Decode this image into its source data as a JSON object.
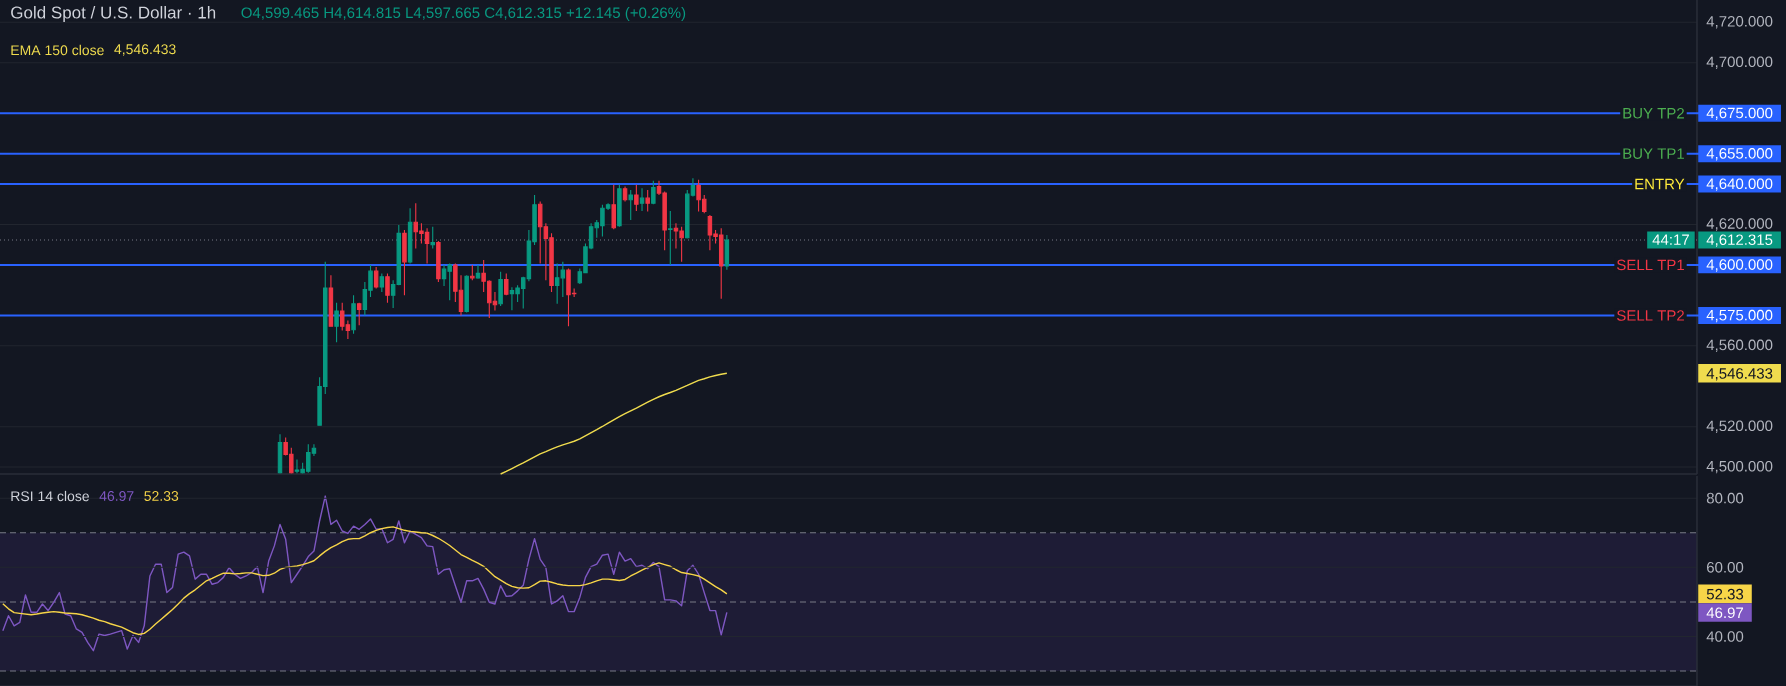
{
  "chart_data": [
    {
      "type": "candlestick",
      "title": "Gold Spot / U.S. Dollar · 1h",
      "subtitle": "O4,599.465 H4,614.815 L4,597.665 C4,612.315 +12.145 (+0.26%)",
      "categories": [
        null,
        null,
        null,
        null,
        null,
        null,
        null,
        null,
        null,
        null,
        null,
        null,
        null,
        null,
        null,
        null,
        null,
        null,
        null,
        null,
        null,
        null,
        null,
        null,
        null,
        null,
        null,
        null,
        null,
        null,
        null,
        null,
        null,
        null,
        null,
        null,
        null,
        null,
        null,
        null,
        null,
        null,
        null,
        null,
        null,
        null,
        null,
        null,
        null,
        null,
        null,
        null,
        null,
        null,
        null,
        null,
        null,
        null,
        null,
        null,
        null,
        null,
        null,
        null,
        null,
        null,
        null,
        null,
        null,
        null,
        null,
        null,
        null,
        null,
        null,
        null,
        null,
        null,
        null,
        null,
        null,
        null,
        null,
        null,
        null,
        null,
        null,
        null,
        null,
        null,
        null,
        null,
        null,
        null,
        null,
        null,
        null,
        null,
        null,
        null,
        null,
        null,
        null,
        null,
        null,
        null,
        null,
        null,
        null,
        null,
        null,
        null,
        null,
        null,
        null,
        null,
        null,
        null,
        null,
        null,
        null,
        null,
        null,
        null,
        null,
        null,
        null,
        null,
        null,
        null,
        null,
        null,
        null,
        null,
        null,
        null,
        null,
        null,
        null,
        null,
        null,
        null,
        null,
        null,
        null,
        null,
        null,
        null,
        null,
        null,
        null,
        null,
        null,
        null,
        null,
        null,
        null,
        null,
        null,
        null,
        null,
        null,
        null,
        null,
        null,
        null,
        null,
        null,
        null,
        null,
        null,
        null,
        null,
        null,
        null,
        null,
        null,
        null,
        null,
        null,
        null,
        null,
        null,
        null,
        null,
        null,
        null,
        null,
        null,
        null,
        null,
        null,
        null,
        null,
        null,
        null,
        null,
        null,
        null,
        null,
        null,
        null,
        null,
        null,
        null,
        null,
        null,
        null,
        null,
        null,
        null,
        null,
        null,
        null,
        null,
        null,
        null,
        null,
        null,
        null,
        null,
        null,
        null,
        null,
        null,
        null,
        null,
        null,
        null,
        null,
        null,
        null,
        null,
        null,
        null,
        null,
        null,
        null,
        null,
        null,
        null,
        null,
        null,
        null,
        null,
        null,
        null,
        null,
        null,
        null,
        null,
        null,
        null,
        null,
        null,
        null,
        null,
        null,
        null,
        null,
        null,
        null,
        null,
        null,
        null,
        null,
        null,
        null,
        null,
        null,
        null,
        null,
        null,
        null,
        null,
        null,
        null,
        null,
        null,
        null,
        null,
        null,
        null,
        null,
        null,
        null,
        null,
        null,
        null,
        null,
        null,
        null,
        null,
        null,
        null,
        null,
        null,
        null,
        null,
        null
      ],
      "ohlc": [
        null,
        null,
        null,
        null,
        null,
        null,
        null,
        null,
        null,
        null,
        null,
        null,
        null,
        null,
        null,
        null,
        null,
        null,
        null,
        null,
        null,
        null,
        null,
        null,
        null,
        null,
        null,
        null,
        null,
        null,
        null,
        null,
        null,
        null,
        null,
        null,
        null,
        null,
        null,
        null,
        null,
        null,
        null,
        null,
        null,
        null,
        null,
        null,
        null,
        [
          4497.2,
          4516.3,
          4496.9,
          4512.1
        ],
        [
          4512.1,
          4514.6,
          4505.8,
          4506.3
        ],
        [
          4506.3,
          4509.6,
          4496.9,
          4497.2
        ],
        [
          4498.0,
          4503.8,
          4497.0,
          4498.5
        ],
        [
          4497.2,
          4502.2,
          4496.9,
          4498.9
        ],
        [
          4498.0,
          4511.3,
          4497.2,
          4507.2
        ],
        [
          4506.9,
          4511.3,
          4505.5,
          4509.3
        ],
        [
          4520.7,
          4544.4,
          4520.4,
          4539.9
        ],
        [
          4539.9,
          4601.5,
          4536.1,
          4588.6
        ],
        [
          4588.6,
          4594.9,
          4569.4,
          4569.7
        ],
        [
          4569.7,
          4581.3,
          4561.8,
          4577.2
        ],
        [
          4577.2,
          4581.3,
          4567.6,
          4569.7
        ],
        [
          4570.4,
          4572.5,
          4563.4,
          4567.6
        ],
        [
          4567.9,
          4585.0,
          4565.9,
          4580.8
        ],
        [
          4580.8,
          4581.3,
          4570.1,
          4578.0
        ],
        [
          4578.0,
          4591.6,
          4575.0,
          4587.8
        ],
        [
          4587.5,
          4600.0,
          4584.1,
          4596.9
        ],
        [
          4596.9,
          4599.0,
          4588.3,
          4589.1
        ],
        [
          4589.1,
          4595.7,
          4586.6,
          4594.1
        ],
        [
          4594.1,
          4595.7,
          4581.3,
          4585.0
        ],
        [
          4585.0,
          4592.4,
          4578.7,
          4590.3
        ],
        [
          4590.3,
          4619.7,
          4589.9,
          4615.6
        ],
        [
          4615.6,
          4617.3,
          4585.0,
          4601.5
        ],
        [
          4601.5,
          4628.0,
          4600.7,
          4621.1
        ],
        [
          4621.1,
          4630.5,
          4608.1,
          4616.4
        ],
        [
          4616.8,
          4620.6,
          4610.6,
          4615.6
        ],
        [
          4616.1,
          4618.1,
          4600.7,
          4610.6
        ],
        [
          4610.0,
          4618.9,
          4608.1,
          4611.0
        ],
        [
          4611.1,
          4611.8,
          4591.6,
          4593.2
        ],
        [
          4593.2,
          4599.9,
          4589.6,
          4597.9
        ],
        [
          4596.9,
          4600.7,
          4582.5,
          4599.9
        ],
        [
          4599.9,
          4600.7,
          4581.7,
          4587.0
        ],
        [
          4587.5,
          4594.9,
          4575.0,
          4577.0
        ],
        [
          4577.0,
          4594.9,
          4576.4,
          4594.4
        ],
        [
          4594.4,
          4599.9,
          4592.4,
          4593.6
        ],
        [
          4593.6,
          4599.9,
          4593.2,
          4595.8
        ],
        [
          4595.8,
          4602.4,
          4586.6,
          4591.9
        ],
        [
          4591.9,
          4592.4,
          4573.7,
          4581.3
        ],
        [
          4582.0,
          4586.6,
          4577.5,
          4580.3
        ],
        [
          4580.8,
          4596.6,
          4579.7,
          4592.7
        ],
        [
          4592.7,
          4595.7,
          4585.0,
          4585.5
        ],
        [
          4585.8,
          4588.9,
          4577.6,
          4587.3
        ],
        [
          4585.8,
          4589.9,
          4581.7,
          4588.6
        ],
        [
          4588.3,
          4594.1,
          4578.4,
          4593.6
        ],
        [
          4593.2,
          4617.3,
          4591.9,
          4611.8
        ],
        [
          4611.5,
          4634.6,
          4609.8,
          4629.7
        ],
        [
          4630.0,
          4631.3,
          4600.7,
          4618.9
        ],
        [
          4618.9,
          4620.6,
          4592.4,
          4613.1
        ],
        [
          4613.4,
          4615.6,
          4586.6,
          4589.9
        ],
        [
          4589.9,
          4600.7,
          4580.8,
          4593.6
        ],
        [
          4593.6,
          4601.5,
          4584.1,
          4597.4
        ],
        [
          4597.4,
          4598.2,
          4569.7,
          4585.3
        ],
        [
          4586.0,
          4588.3,
          4584.1,
          4585.7
        ],
        [
          4591.2,
          4598.2,
          4590.5,
          4596.6
        ],
        [
          4596.2,
          4610.6,
          4595.9,
          4608.9
        ],
        [
          4608.4,
          4620.6,
          4607.8,
          4618.9
        ],
        [
          4618.4,
          4622.2,
          4613.4,
          4620.8
        ],
        [
          4619.4,
          4629.7,
          4614.0,
          4628.0
        ],
        [
          4628.0,
          4630.5,
          4627.2,
          4629.7
        ],
        [
          4629.7,
          4639.6,
          4617.6,
          4618.4
        ],
        [
          4619.4,
          4639.6,
          4618.9,
          4637.6
        ],
        [
          4637.6,
          4638.8,
          4631.3,
          4632.2
        ],
        [
          4632.2,
          4637.1,
          4622.2,
          4634.6
        ],
        [
          4634.6,
          4639.6,
          4626.7,
          4630.0
        ],
        [
          4630.5,
          4637.9,
          4626.7,
          4633.0
        ],
        [
          4633.0,
          4637.1,
          4626.4,
          4630.5
        ],
        [
          4630.5,
          4641.6,
          4630.0,
          4638.3
        ],
        [
          4638.8,
          4641.6,
          4634.6,
          4635.5
        ],
        [
          4635.5,
          4636.3,
          4607.3,
          4617.3
        ],
        [
          4617.5,
          4626.7,
          4599.9,
          4617.8
        ],
        [
          4618.1,
          4620.6,
          4608.1,
          4616.8
        ],
        [
          4616.8,
          4618.9,
          4601.5,
          4613.4
        ],
        [
          4613.4,
          4637.1,
          4613.1,
          4635.0
        ],
        [
          4634.5,
          4642.9,
          4633.8,
          4639.3
        ],
        [
          4639.3,
          4642.1,
          4626.4,
          4632.2
        ],
        [
          4632.5,
          4634.6,
          4625.5,
          4626.4
        ],
        [
          4623.9,
          4624.7,
          4607.3,
          4614.8
        ],
        [
          4615.3,
          4617.3,
          4610.6,
          4614.1
        ],
        [
          4614.8,
          4618.1,
          4583.3,
          4599.5
        ],
        [
          4599.465,
          4614.815,
          4597.665,
          4612.315
        ],
        null,
        null,
        null,
        null,
        null,
        null,
        null,
        null,
        null,
        null,
        null,
        null,
        null,
        null,
        null,
        null,
        null,
        null,
        null,
        null,
        null,
        null,
        null,
        null,
        null,
        null,
        null,
        null,
        null,
        null,
        null,
        null,
        null,
        null,
        null,
        null,
        null,
        null,
        null,
        null,
        null,
        null,
        null,
        null,
        null,
        null,
        null,
        null,
        null,
        null,
        null,
        null,
        null,
        null,
        null,
        null,
        null,
        null,
        null,
        null,
        null,
        null,
        null,
        null,
        null,
        null,
        null,
        null,
        null,
        null,
        null,
        null,
        null,
        null,
        null,
        null,
        null,
        null,
        null,
        null,
        null,
        null,
        null,
        null,
        null,
        null,
        null,
        null,
        null,
        null,
        null,
        null,
        null,
        null,
        null,
        null,
        null,
        null,
        null,
        null,
        null,
        null,
        null,
        null,
        null,
        null,
        null,
        null,
        null,
        null,
        null,
        null,
        null,
        null,
        null,
        null,
        null,
        null,
        null,
        null,
        null,
        null,
        null,
        null,
        null,
        null,
        null,
        null,
        null,
        null,
        null,
        null,
        null,
        null,
        null,
        null,
        null,
        null,
        null,
        null,
        null,
        null,
        null,
        null,
        null,
        null,
        null,
        null,
        null,
        null,
        null,
        null,
        null,
        null,
        null,
        null,
        null,
        null,
        null,
        null,
        null,
        null,
        null,
        null,
        null,
        null,
        null,
        null,
        null,
        null,
        null
      ],
      "series": [
        {
          "type": "line",
          "name": "EMA 150 close",
          "color": "#f0dc4e",
          "values": [
            null,
            null,
            null,
            null,
            null,
            null,
            null,
            null,
            null,
            null,
            null,
            null,
            null,
            null,
            null,
            null,
            null,
            null,
            null,
            null,
            null,
            null,
            null,
            null,
            null,
            null,
            null,
            null,
            null,
            null,
            null,
            null,
            null,
            null,
            null,
            null,
            null,
            null,
            null,
            null,
            null,
            null,
            null,
            null,
            null,
            null,
            null,
            null,
            null,
            null,
            null,
            null,
            null,
            null,
            null,
            null,
            null,
            null,
            null,
            null,
            null,
            null,
            null,
            null,
            null,
            null,
            null,
            null,
            null,
            null,
            null,
            null,
            null,
            null,
            null,
            null,
            null,
            null,
            null,
            null,
            null,
            null,
            null,
            null,
            null,
            null,
            null,
            null,
            4496.6,
            4497.9,
            4499.3,
            4500.7,
            4502.1,
            4503.6,
            4505.1,
            4506.6,
            4507.7,
            4508.9,
            4510.0,
            4511.0,
            4511.9,
            4512.8,
            4514.0,
            4515.5,
            4517.0,
            4518.5,
            4520.1,
            4521.8,
            4523.4,
            4525.0,
            4526.4,
            4527.8,
            4529.2,
            4530.7,
            4532.1,
            4533.5,
            4534.8,
            4535.9,
            4536.9,
            4538.0,
            4539.2,
            4540.4,
            4541.7,
            4542.9,
            4543.7,
            4544.6,
            4545.3,
            4545.9,
            4546.433,
            null,
            null,
            null,
            null,
            null,
            null,
            null,
            null,
            null,
            null,
            null,
            null,
            null,
            null,
            null,
            null,
            null,
            null,
            null,
            null,
            null,
            null,
            null,
            null,
            null,
            null,
            null,
            null,
            null,
            null,
            null,
            null,
            null,
            null,
            null,
            null,
            null,
            null,
            null,
            null,
            null,
            null,
            null,
            null,
            null,
            null,
            null,
            null,
            null,
            null,
            null,
            null,
            null,
            null,
            null,
            null,
            null,
            null,
            null,
            null,
            null,
            null,
            null,
            null,
            null,
            null,
            null,
            null,
            null,
            null,
            null,
            null,
            null,
            null,
            null,
            null,
            null,
            null,
            null,
            null,
            null,
            null,
            null,
            null,
            null,
            null,
            null,
            null,
            null,
            null,
            null,
            null,
            null,
            null,
            null,
            null,
            null,
            null,
            null,
            null,
            null,
            null,
            null,
            null,
            null,
            null,
            null,
            null,
            null,
            null,
            null,
            null,
            null,
            null,
            null,
            null,
            null,
            null,
            null,
            null,
            null,
            null,
            null,
            null,
            null,
            null,
            null,
            null,
            null,
            null,
            null,
            null,
            null,
            null,
            null,
            null,
            null,
            null,
            null,
            null,
            null,
            null,
            null,
            null,
            null,
            null,
            null,
            null,
            null,
            null,
            null,
            null,
            null,
            null,
            null,
            null,
            null,
            null,
            null,
            null,
            null,
            null,
            null,
            null,
            null,
            null,
            null,
            null,
            null,
            null,
            null
          ]
        }
      ],
      "ylim": [
        4496.6,
        4731
      ],
      "yticks": [
        {
          "value": 4720,
          "label": "4,720.000"
        },
        {
          "value": 4700,
          "label": "4,700.000"
        },
        {
          "value": 4620,
          "label": "4,620.000"
        },
        {
          "value": 4560,
          "label": "4,560.000"
        },
        {
          "value": 4546.433,
          "label": "4,546.433"
        },
        {
          "value": 4520,
          "label": "4,520.000"
        },
        {
          "value": 4500,
          "label": "4,500.000"
        }
      ],
      "ref_lines": [
        {
          "axis": "y",
          "value": 4675,
          "label": "BUY TP2",
          "color": "#2962ff"
        },
        {
          "axis": "y",
          "value": 4655,
          "label": "BUY TP1",
          "color": "#2962ff"
        },
        {
          "axis": "y",
          "value": 4640,
          "label": "ENTRY",
          "color": "#2962ff"
        },
        {
          "axis": "y",
          "value": 4600,
          "label": "SELL TP1",
          "color": "#2962ff"
        },
        {
          "axis": "y",
          "value": 4575,
          "label": "SELL TP2",
          "color": "#2962ff"
        },
        {
          "axis": "y",
          "value": 4612.315,
          "color": "#787b86",
          "line_style": "dotted"
        }
      ],
      "grid": "y",
      "legend": "top left",
      "tick_labels": "y",
      "annotations": [
        "4,546.433",
        {
          "text": "4,675.000",
          "y": 4675
        },
        {
          "text": "4,655.000",
          "y": 4655
        },
        {
          "text": "4,640.000",
          "y": 4640
        },
        {
          "text": "4,612.315",
          "y": 4612.315
        },
        {
          "text": "44:17",
          "y": 4612.315
        },
        {
          "text": "4,600.000",
          "y": 4600
        },
        {
          "text": "4,575.000",
          "y": 4575
        }
      ]
    },
    {
      "type": "line",
      "title": "RSI 14 close",
      "categories": [
        null,
        null,
        null,
        null,
        null,
        null,
        null,
        null,
        null,
        null,
        null,
        null,
        null,
        null,
        null,
        null,
        null,
        null,
        null,
        null,
        null,
        null,
        null,
        null,
        null,
        null,
        null,
        null,
        null,
        null,
        null,
        null,
        null,
        null,
        null,
        null,
        null,
        null,
        null,
        null,
        null,
        null,
        null,
        null,
        null,
        null,
        null,
        null,
        null,
        null,
        null,
        null,
        null,
        null,
        null,
        null,
        null,
        null,
        null,
        null,
        null,
        null,
        null,
        null,
        null,
        null,
        null,
        null,
        null,
        null,
        null,
        null,
        null,
        null,
        null,
        null,
        null,
        null,
        null,
        null,
        null,
        null,
        null,
        null,
        null,
        null,
        null,
        null,
        null,
        null,
        null,
        null,
        null,
        null,
        null,
        null,
        null,
        null,
        null,
        null,
        null,
        null,
        null,
        null,
        null,
        null,
        null,
        null,
        null,
        null,
        null,
        null,
        null,
        null,
        null,
        null,
        null,
        null,
        null,
        null,
        null,
        null,
        null,
        null,
        null,
        null,
        null,
        null,
        null,
        null,
        null,
        null,
        null,
        null,
        null,
        null,
        null,
        null,
        null,
        null,
        null,
        null,
        null,
        null,
        null,
        null,
        null,
        null,
        null,
        null,
        null,
        null,
        null,
        null,
        null,
        null,
        null,
        null,
        null,
        null,
        null,
        null,
        null,
        null,
        null,
        null,
        null,
        null,
        null,
        null,
        null,
        null,
        null,
        null,
        null,
        null,
        null,
        null,
        null,
        null,
        null,
        null,
        null,
        null,
        null,
        null,
        null,
        null,
        null,
        null,
        null,
        null,
        null,
        null,
        null,
        null,
        null,
        null,
        null,
        null,
        null,
        null,
        null,
        null,
        null,
        null,
        null,
        null,
        null,
        null,
        null,
        null,
        null,
        null,
        null,
        null,
        null,
        null,
        null,
        null,
        null,
        null,
        null,
        null,
        null,
        null,
        null,
        null,
        null,
        null,
        null,
        null,
        null,
        null,
        null,
        null,
        null,
        null,
        null,
        null,
        null,
        null,
        null,
        null,
        null,
        null,
        null,
        null,
        null,
        null,
        null,
        null,
        null,
        null,
        null,
        null,
        null,
        null,
        null,
        null,
        null,
        null,
        null,
        null,
        null,
        null,
        null,
        null,
        null,
        null,
        null,
        null,
        null,
        null,
        null,
        null,
        null,
        null,
        null,
        null,
        null,
        null,
        null,
        null,
        null,
        null,
        null,
        null,
        null,
        null,
        null,
        null,
        null,
        null,
        null,
        null,
        null,
        null,
        null,
        null
      ],
      "series": [
        {
          "color": "#7e57c2",
          "values": [
            41.7,
            46.0,
            43.1,
            44.1,
            52.0,
            47.0,
            47.0,
            49.4,
            47.5,
            49.9,
            52.7,
            46.5,
            46.0,
            42.2,
            41.2,
            38.3,
            35.9,
            40.7,
            40.3,
            40.7,
            41.2,
            41.7,
            36.4,
            40.3,
            38.3,
            43.1,
            57.5,
            60.9,
            60.9,
            52.7,
            54.2,
            63.8,
            64.4,
            63.3,
            56.6,
            58.0,
            58.0,
            55.1,
            55.6,
            57.1,
            59.9,
            58.0,
            56.8,
            57.5,
            58.5,
            60.2,
            52.7,
            61.8,
            66.2,
            72.4,
            68.1,
            55.6,
            58.0,
            60.4,
            63.1,
            64.7,
            73.4,
            80.6,
            72.4,
            73.6,
            70.5,
            69.8,
            71.9,
            71.0,
            72.4,
            74.0,
            71.0,
            71.2,
            67.1,
            68.1,
            73.4,
            67.1,
            70.5,
            69.5,
            68.6,
            66.2,
            66.0,
            58.0,
            59.3,
            59.6,
            54.7,
            49.9,
            56.1,
            56.1,
            56.8,
            53.7,
            49.9,
            49.4,
            54.7,
            51.6,
            51.8,
            53.2,
            54.8,
            62.3,
            68.3,
            62.3,
            59.9,
            49.4,
            50.3,
            51.8,
            47.2,
            47.2,
            51.3,
            57.1,
            60.2,
            60.9,
            63.5,
            63.8,
            58.0,
            64.4,
            61.8,
            62.5,
            60.2,
            60.6,
            59.6,
            61.4,
            60.2,
            50.6,
            50.6,
            50.3,
            48.9,
            59.0,
            60.6,
            58.0,
            52.7,
            47.5,
            47.5,
            40.5,
            46.97,
            null,
            null,
            null,
            null,
            null,
            null,
            null,
            null,
            null,
            null,
            null,
            null,
            null,
            null,
            null,
            null,
            null,
            null,
            null,
            null,
            null,
            null,
            null,
            null,
            null,
            null,
            null,
            null,
            null,
            null,
            null,
            null,
            null,
            null,
            null,
            null,
            null,
            null,
            null,
            null,
            null,
            null,
            null,
            null,
            null,
            null,
            null,
            null,
            null,
            null,
            null,
            null,
            null,
            null,
            null,
            null,
            null,
            null,
            null,
            null,
            null,
            null,
            null,
            null,
            null,
            null,
            null,
            null,
            null,
            null,
            null,
            null,
            null,
            null,
            null,
            null,
            null,
            null,
            null,
            null,
            null,
            null,
            null,
            null,
            null,
            null,
            null,
            null,
            null,
            null,
            null,
            null,
            null,
            null,
            null,
            null,
            null,
            null,
            null,
            null,
            null,
            null,
            null,
            null,
            null,
            null,
            null,
            null,
            null,
            null,
            null,
            null,
            null,
            null,
            null,
            null,
            null,
            null,
            null,
            null,
            null,
            null,
            null,
            null,
            null,
            null,
            null,
            null,
            null,
            null,
            null,
            null,
            null,
            null,
            null,
            null,
            null,
            null,
            null,
            null,
            null,
            null,
            null,
            null,
            null,
            null,
            null,
            null,
            null,
            null,
            null,
            null,
            null,
            null,
            null,
            null,
            null,
            null,
            null,
            null,
            null,
            null,
            null,
            null,
            null,
            null,
            null,
            null,
            null,
            null,
            null
          ]
        },
        {
          "color": "#f7d548",
          "values": [
            49.5,
            48.0,
            46.9,
            46.7,
            46.5,
            46.3,
            46.5,
            46.8,
            47.0,
            47.2,
            47.0,
            46.8,
            46.7,
            46.6,
            46.3,
            45.8,
            45.3,
            44.7,
            44.3,
            43.7,
            43.2,
            42.7,
            41.9,
            41.1,
            40.6,
            40.9,
            42.1,
            43.6,
            45.0,
            46.4,
            47.8,
            49.4,
            51.1,
            52.4,
            53.5,
            54.8,
            56.1,
            56.8,
            57.6,
            58.3,
            58.3,
            58.1,
            58.2,
            58.4,
            58.4,
            58.0,
            57.6,
            57.7,
            58.3,
            59.4,
            60.0,
            60.2,
            60.4,
            60.8,
            61.3,
            61.9,
            63.3,
            64.6,
            65.7,
            66.5,
            67.4,
            68.1,
            68.3,
            68.3,
            69.1,
            70.0,
            70.7,
            71.2,
            71.5,
            71.7,
            71.2,
            70.7,
            70.4,
            70.2,
            70.0,
            69.9,
            69.2,
            68.4,
            67.4,
            66.3,
            65.0,
            63.7,
            62.9,
            62.0,
            61.2,
            60.3,
            58.8,
            57.3,
            56.3,
            55.3,
            54.5,
            54.1,
            54.0,
            54.1,
            55.0,
            56.0,
            56.1,
            55.7,
            55.2,
            54.9,
            54.7,
            54.7,
            54.7,
            55.0,
            55.5,
            56.1,
            56.6,
            56.6,
            56.4,
            56.2,
            56.5,
            57.5,
            58.3,
            59.2,
            60.0,
            60.8,
            61.3,
            60.8,
            60.3,
            59.3,
            58.5,
            58.2,
            57.9,
            57.5,
            56.6,
            55.5,
            54.4,
            53.5,
            52.33,
            null,
            null,
            null,
            null,
            null,
            null,
            null,
            null,
            null,
            null,
            null,
            null,
            null,
            null,
            null,
            null,
            null,
            null,
            null,
            null,
            null,
            null,
            null,
            null,
            null,
            null,
            null,
            null,
            null,
            null,
            null,
            null,
            null,
            null,
            null,
            null,
            null,
            null,
            null,
            null,
            null,
            null,
            null,
            null,
            null,
            null,
            null,
            null,
            null,
            null,
            null,
            null,
            null,
            null,
            null,
            null,
            null,
            null,
            null,
            null,
            null,
            null,
            null,
            null,
            null,
            null,
            null,
            null,
            null,
            null,
            null,
            null,
            null,
            null,
            null,
            null,
            null,
            null,
            null,
            null,
            null,
            null,
            null,
            null,
            null,
            null,
            null,
            null,
            null,
            null,
            null,
            null,
            null,
            null,
            null,
            null,
            null,
            null,
            null,
            null,
            null,
            null,
            null,
            null,
            null,
            null,
            null,
            null,
            null,
            null,
            null,
            null,
            null,
            null,
            null,
            null,
            null,
            null,
            null,
            null,
            null,
            null,
            null,
            null,
            null,
            null,
            null,
            null,
            null,
            null,
            null,
            null,
            null,
            null,
            null,
            null,
            null,
            null,
            null,
            null,
            null,
            null,
            null,
            null,
            null,
            null,
            null,
            null,
            null,
            null,
            null,
            null,
            null,
            null,
            null,
            null,
            null,
            null,
            null,
            null,
            null,
            null,
            null,
            null,
            null,
            null,
            null,
            null,
            null,
            null,
            null
          ]
        }
      ],
      "ylim": [
        25.7,
        86.4
      ],
      "yticks": [
        {
          "value": 80,
          "label": "80.00"
        },
        {
          "value": 60,
          "label": "60.00"
        },
        {
          "value": 52.33,
          "label": "52.33"
        },
        {
          "value": 46.97,
          "label": "46.97"
        },
        {
          "value": 40,
          "label": "40.00"
        }
      ],
      "ref_lines": [
        {
          "axis": "y",
          "value": 70,
          "color": "#787b86",
          "line_style": "dashed"
        },
        {
          "axis": "y",
          "value": 50,
          "color": "#787b86",
          "line_style": "dashed"
        },
        {
          "axis": "y",
          "value": 30,
          "color": "#787b86",
          "line_style": "dashed"
        }
      ],
      "bands": [
        {
          "axis": "y",
          "from": 30,
          "to": 70,
          "color": "#1e1c36"
        }
      ],
      "grid": "y",
      "tick_labels": "y",
      "annotations": [
        "46.97",
        "52.33"
      ]
    }
  ]
}
